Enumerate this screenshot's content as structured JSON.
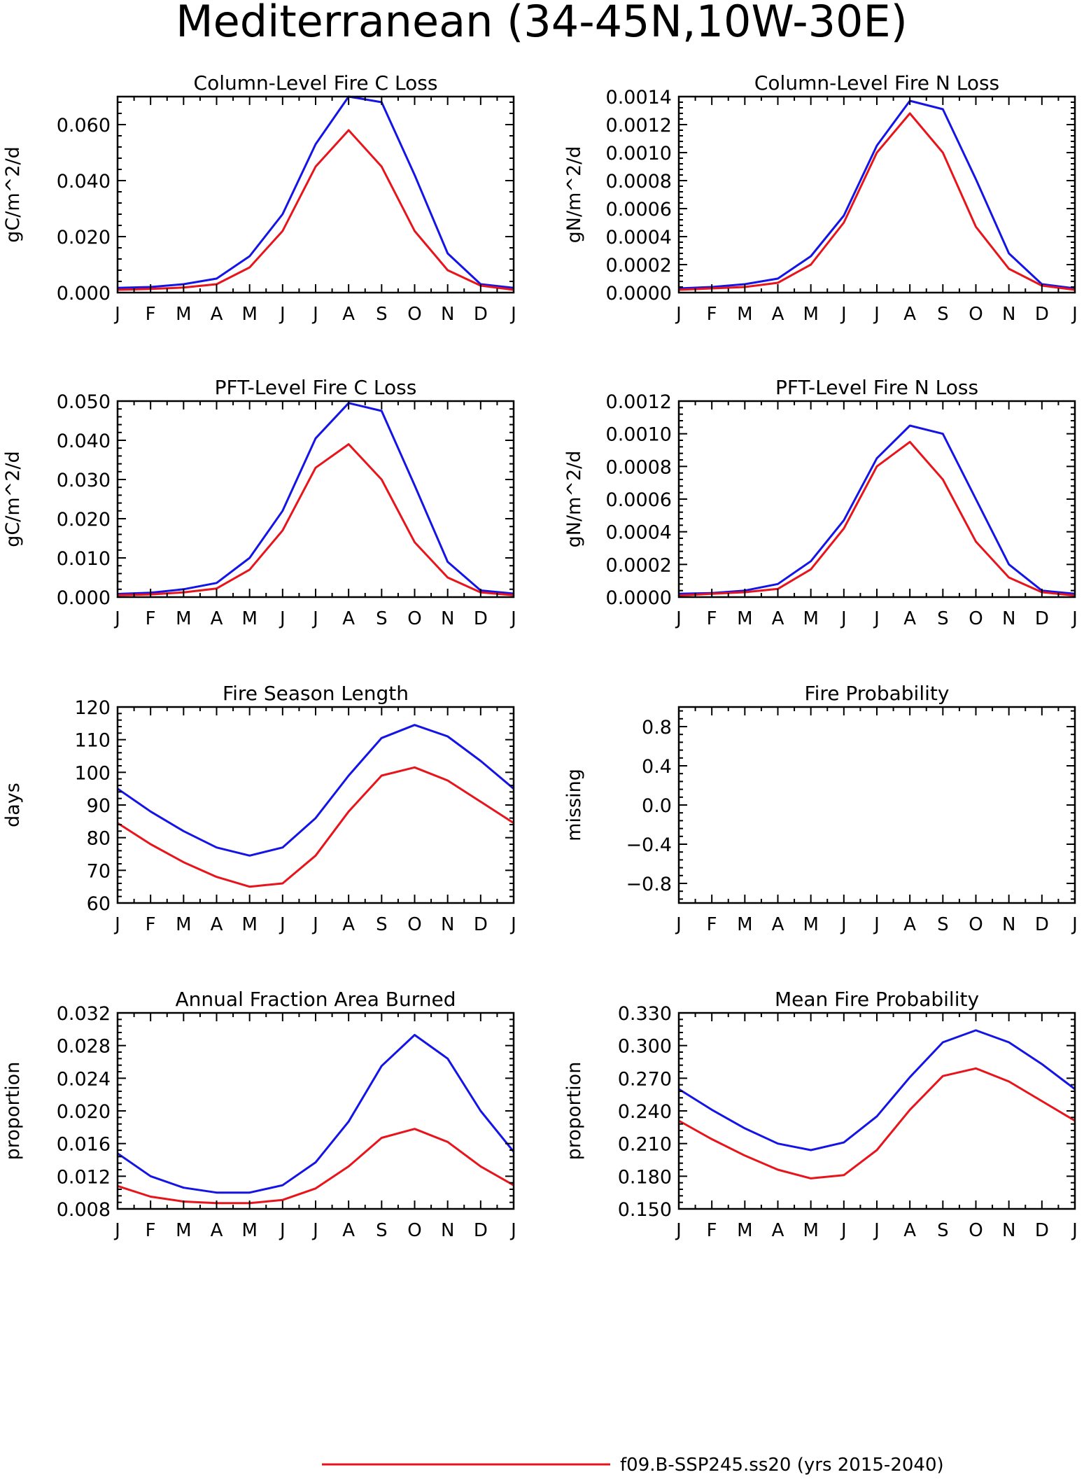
{
  "figure": {
    "title": "Mediterranean (34-45N,10W-30E)"
  },
  "legend": {
    "entries": [
      {
        "label": "f09.B-SSP245.ss20 (yrs 2015-2040)",
        "color": "#e8141c"
      }
    ]
  },
  "chart_data": [
    {
      "type": "line",
      "title": "Column-Level Fire C Loss",
      "ylabel": "gC/m^2/d",
      "ylim": [
        0,
        0.07
      ],
      "yticks": [
        0,
        0.02,
        0.04,
        0.06
      ],
      "ytick_labels": [
        "0.000",
        "0.020",
        "0.040",
        "0.060"
      ],
      "categories": [
        "J",
        "F",
        "M",
        "A",
        "M",
        "J",
        "J",
        "A",
        "S",
        "O",
        "N",
        "D",
        "J"
      ],
      "series": [
        {
          "color": "#1414e6",
          "values": [
            0.0017,
            0.002,
            0.003,
            0.005,
            0.013,
            0.028,
            0.053,
            0.07,
            0.068,
            0.042,
            0.014,
            0.003,
            0.0017
          ]
        },
        {
          "color": "#e8141c",
          "values": [
            0.001,
            0.0013,
            0.0018,
            0.003,
            0.009,
            0.022,
            0.045,
            0.058,
            0.045,
            0.022,
            0.008,
            0.0025,
            0.001
          ]
        }
      ]
    },
    {
      "type": "line",
      "title": "Column-Level Fire N Loss",
      "ylabel": "gN/m^2/d",
      "ylim": [
        0,
        0.0014
      ],
      "yticks": [
        0,
        0.0002,
        0.0004,
        0.0006,
        0.0008,
        0.001,
        0.0012,
        0.0014
      ],
      "ytick_labels": [
        "0.0000",
        "0.0002",
        "0.0004",
        "0.0006",
        "0.0008",
        "0.0010",
        "0.0012",
        "0.0014"
      ],
      "categories": [
        "J",
        "F",
        "M",
        "A",
        "M",
        "J",
        "J",
        "A",
        "S",
        "O",
        "N",
        "D",
        "J"
      ],
      "series": [
        {
          "color": "#1414e6",
          "values": [
            3e-05,
            4e-05,
            6e-05,
            0.0001,
            0.00026,
            0.00055,
            0.00105,
            0.00137,
            0.00131,
            0.00081,
            0.00028,
            6e-05,
            3e-05
          ]
        },
        {
          "color": "#e8141c",
          "values": [
            2e-05,
            3e-05,
            4e-05,
            7e-05,
            0.0002,
            0.0005,
            0.001,
            0.00128,
            0.001,
            0.00047,
            0.00017,
            5e-05,
            2e-05
          ]
        }
      ]
    },
    {
      "type": "line",
      "title": "PFT-Level Fire C Loss",
      "ylabel": "gC/m^2/d",
      "ylim": [
        0,
        0.05
      ],
      "yticks": [
        0,
        0.01,
        0.02,
        0.03,
        0.04,
        0.05
      ],
      "ytick_labels": [
        "0.000",
        "0.010",
        "0.020",
        "0.030",
        "0.040",
        "0.050"
      ],
      "categories": [
        "J",
        "F",
        "M",
        "A",
        "M",
        "J",
        "J",
        "A",
        "S",
        "O",
        "N",
        "D",
        "J"
      ],
      "series": [
        {
          "color": "#1414e6",
          "values": [
            0.0008,
            0.0011,
            0.002,
            0.0036,
            0.01,
            0.022,
            0.0405,
            0.0495,
            0.0475,
            0.0285,
            0.009,
            0.0017,
            0.0009
          ]
        },
        {
          "color": "#e8141c",
          "values": [
            0.0005,
            0.0007,
            0.0012,
            0.0022,
            0.007,
            0.017,
            0.033,
            0.039,
            0.03,
            0.014,
            0.005,
            0.0012,
            0.0005
          ]
        }
      ]
    },
    {
      "type": "line",
      "title": "PFT-Level Fire N Loss",
      "ylabel": "gN/m^2/d",
      "ylim": [
        0,
        0.0012
      ],
      "yticks": [
        0,
        0.0002,
        0.0004,
        0.0006,
        0.0008,
        0.001,
        0.0012
      ],
      "ytick_labels": [
        "0.0000",
        "0.0002",
        "0.0004",
        "0.0006",
        "0.0008",
        "0.0010",
        "0.0012"
      ],
      "categories": [
        "J",
        "F",
        "M",
        "A",
        "M",
        "J",
        "J",
        "A",
        "S",
        "O",
        "N",
        "D",
        "J"
      ],
      "series": [
        {
          "color": "#1414e6",
          "values": [
            2e-05,
            2.5e-05,
            4e-05,
            8e-05,
            0.00022,
            0.00047,
            0.00085,
            0.00105,
            0.001,
            0.0006,
            0.0002,
            4e-05,
            2e-05
          ]
        },
        {
          "color": "#e8141c",
          "values": [
            1e-05,
            2e-05,
            3e-05,
            5e-05,
            0.00017,
            0.00042,
            0.0008,
            0.00095,
            0.00072,
            0.00034,
            0.00012,
            3e-05,
            1e-05
          ]
        }
      ]
    },
    {
      "type": "line",
      "title": "Fire Season Length",
      "ylabel": "days",
      "ylim": [
        60,
        120
      ],
      "yticks": [
        60,
        70,
        80,
        90,
        100,
        110,
        120
      ],
      "ytick_labels": [
        "60",
        "70",
        "80",
        "90",
        "100",
        "110",
        "120"
      ],
      "categories": [
        "J",
        "F",
        "M",
        "A",
        "M",
        "J",
        "J",
        "A",
        "S",
        "O",
        "N",
        "D",
        "J"
      ],
      "series": [
        {
          "color": "#1414e6",
          "values": [
            95,
            88,
            82,
            77,
            74.5,
            77,
            86,
            99,
            110.5,
            114.5,
            111,
            103.5,
            95
          ]
        },
        {
          "color": "#e8141c",
          "values": [
            84.5,
            78,
            72.5,
            68,
            65,
            66,
            74.5,
            88,
            99,
            101.5,
            97.5,
            91,
            84.5
          ]
        }
      ]
    },
    {
      "type": "line",
      "title": "Fire Probability",
      "ylabel": "missing",
      "ylim": [
        -1,
        1
      ],
      "yticks": [
        -0.8,
        -0.4,
        0,
        0.4,
        0.8
      ],
      "ytick_labels": [
        "−0.8",
        "−0.4",
        "0.0",
        "0.4",
        "0.8"
      ],
      "categories": [
        "J",
        "F",
        "M",
        "A",
        "M",
        "J",
        "J",
        "A",
        "S",
        "O",
        "N",
        "D",
        "J"
      ],
      "series": []
    },
    {
      "type": "line",
      "title": "Annual Fraction Area Burned",
      "ylabel": "proportion",
      "ylim": [
        0.008,
        0.032
      ],
      "yticks": [
        0.008,
        0.012,
        0.016,
        0.02,
        0.024,
        0.028,
        0.032
      ],
      "ytick_labels": [
        "0.008",
        "0.012",
        "0.016",
        "0.020",
        "0.024",
        "0.028",
        "0.032"
      ],
      "categories": [
        "J",
        "F",
        "M",
        "A",
        "M",
        "J",
        "J",
        "A",
        "S",
        "O",
        "N",
        "D",
        "J"
      ],
      "series": [
        {
          "color": "#1414e6",
          "values": [
            0.0148,
            0.012,
            0.0106,
            0.01,
            0.01,
            0.0109,
            0.0137,
            0.0187,
            0.0255,
            0.0293,
            0.0264,
            0.02,
            0.015
          ]
        },
        {
          "color": "#e8141c",
          "values": [
            0.0108,
            0.0095,
            0.0089,
            0.0087,
            0.0087,
            0.0091,
            0.0105,
            0.0132,
            0.0167,
            0.0178,
            0.0162,
            0.0132,
            0.0109
          ]
        }
      ]
    },
    {
      "type": "line",
      "title": "Mean Fire Probability",
      "ylabel": "proportion",
      "ylim": [
        0.15,
        0.33
      ],
      "yticks": [
        0.15,
        0.18,
        0.21,
        0.24,
        0.27,
        0.3,
        0.33
      ],
      "ytick_labels": [
        "0.150",
        "0.180",
        "0.210",
        "0.240",
        "0.270",
        "0.300",
        "0.330"
      ],
      "categories": [
        "J",
        "F",
        "M",
        "A",
        "M",
        "J",
        "J",
        "A",
        "S",
        "O",
        "N",
        "D",
        "J"
      ],
      "series": [
        {
          "color": "#1414e6",
          "values": [
            0.26,
            0.241,
            0.224,
            0.21,
            0.204,
            0.211,
            0.235,
            0.271,
            0.303,
            0.314,
            0.303,
            0.283,
            0.26
          ]
        },
        {
          "color": "#e8141c",
          "values": [
            0.231,
            0.214,
            0.199,
            0.186,
            0.178,
            0.181,
            0.204,
            0.241,
            0.272,
            0.279,
            0.267,
            0.249,
            0.231
          ]
        }
      ]
    }
  ]
}
